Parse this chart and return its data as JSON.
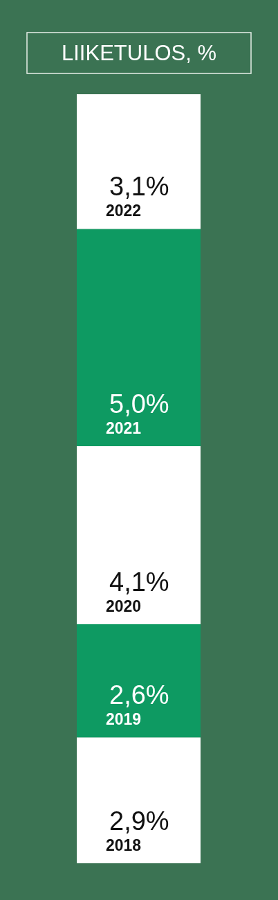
{
  "chart_data": {
    "type": "bar",
    "title": "LIIKETULOS, %",
    "stacked": true,
    "categories": [
      null
    ],
    "series": [
      {
        "name": "2018",
        "color": "#ffffff",
        "values": [
          2.9
        ],
        "value_labels": [
          "2,9%"
        ]
      },
      {
        "name": "2019",
        "color": "#0e9a62",
        "values": [
          2.6
        ],
        "value_labels": [
          "2,6%"
        ]
      },
      {
        "name": "2020",
        "color": "#ffffff",
        "values": [
          4.1
        ],
        "value_labels": [
          "4,1%"
        ]
      },
      {
        "name": "2021",
        "color": "#0e9a62",
        "values": [
          5.0
        ],
        "value_labels": [
          "5,0%"
        ]
      },
      {
        "name": "2022",
        "color": "#ffffff",
        "values": [
          3.1
        ],
        "value_labels": [
          "3,1%"
        ]
      }
    ]
  }
}
